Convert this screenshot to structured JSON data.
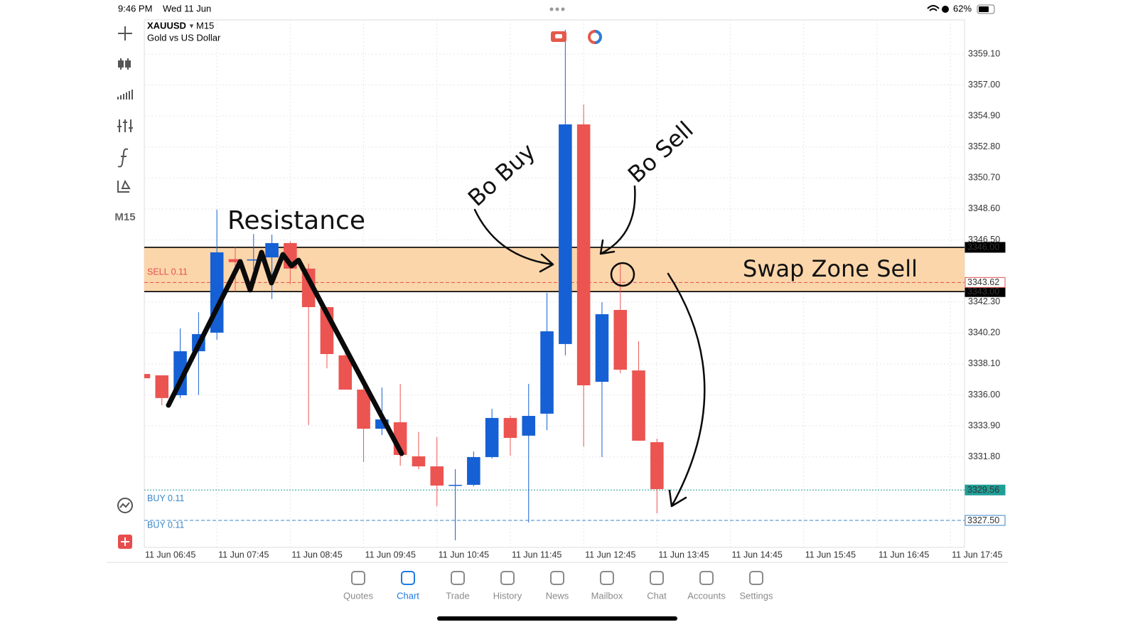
{
  "status_bar": {
    "time": "9:46 PM",
    "date": "Wed 11 Jun",
    "battery": "62%"
  },
  "chart_header": {
    "symbol": "XAUUSD",
    "timeframe": "M15",
    "description": "Gold vs US Dollar"
  },
  "left_toolbar": {
    "timeframe": "M15"
  },
  "chart_data": {
    "type": "candlestick",
    "open": [
      3337.42,
      3337.33,
      3335.98,
      3338.96,
      3340.22,
      3345.2,
      3345.13,
      3345.32,
      3346.29,
      3344.56,
      3341.95,
      3338.68,
      3336.36,
      3333.71,
      3334.15,
      3331.84,
      3331.16,
      3329.86,
      3329.91,
      3331.79,
      3334.44,
      3333.24,
      3334.73,
      3339.45,
      3354.33,
      3336.89,
      3341.76,
      3337.66,
      3332.8
    ],
    "high": [
      3337.5,
      3337.33,
      3340.5,
      3341.6,
      3348.55,
      3346.0,
      3346.9,
      3346.86,
      3346.4,
      3344.9,
      3341.95,
      3339.16,
      3336.75,
      3336.5,
      3336.75,
      3333.5,
      3333.14,
      3330.97,
      3332.17,
      3335.06,
      3334.58,
      3336.75,
      3342.92,
      3360.74,
      3355.68,
      3342.29,
      3344.94,
      3339.64,
      3333.04
    ],
    "low": [
      3337.0,
      3335.3,
      3335.79,
      3336.0,
      3339.74,
      3343.0,
      3344.5,
      3342.5,
      3343.5,
      3333.96,
      3337.8,
      3336.36,
      3331.45,
      3333.28,
      3331.2,
      3330.97,
      3328.46,
      3326.15,
      3329.81,
      3331.69,
      3331.89,
      3327.36,
      3333.62,
      3338.68,
      3332.51,
      3331.79,
      3337.47,
      3332.9,
      3327.98
    ],
    "close": [
      3337.13,
      3335.79,
      3338.96,
      3340.12,
      3345.66,
      3345.0,
      3345.18,
      3346.29,
      3344.56,
      3341.95,
      3338.77,
      3336.36,
      3333.71,
      3334.34,
      3331.93,
      3331.16,
      3329.86,
      3329.91,
      3331.79,
      3334.44,
      3333.09,
      3334.58,
      3340.31,
      3354.33,
      3336.65,
      3341.47,
      3337.71,
      3332.9,
      3329.62
    ],
    "up_color": "#1560d4",
    "down_color": "#ec5451",
    "ylim": [
      3325.67,
      3361.41
    ],
    "yticks": [
      {
        "value": 3359.1,
        "label": "3359.10"
      },
      {
        "value": 3357.0,
        "label": "3357.00"
      },
      {
        "value": 3354.9,
        "label": "3354.90"
      },
      {
        "value": 3352.8,
        "label": "3352.80"
      },
      {
        "value": 3350.7,
        "label": "3350.70"
      },
      {
        "value": 3348.6,
        "label": "3348.60"
      },
      {
        "value": 3346.5,
        "label": "3346.50"
      },
      {
        "value": 3342.3,
        "label": "3342.30"
      },
      {
        "value": 3340.2,
        "label": "3340.20"
      },
      {
        "value": 3338.1,
        "label": "3338.10"
      },
      {
        "value": 3336.0,
        "label": "3336.00"
      },
      {
        "value": 3333.9,
        "label": "3333.90"
      },
      {
        "value": 3331.8,
        "label": "3331.80"
      }
    ],
    "xlim": [
      0.04,
      44.77
    ],
    "xticks": [
      {
        "value": 0,
        "label": "11 Jun 06:45"
      },
      {
        "value": 4,
        "label": "11 Jun 07:45"
      },
      {
        "value": 8,
        "label": "11 Jun 08:45"
      },
      {
        "value": 12,
        "label": "11 Jun 09:45"
      },
      {
        "value": 16,
        "label": "11 Jun 10:45"
      },
      {
        "value": 20,
        "label": "11 Jun 11:45"
      },
      {
        "value": 24,
        "label": "11 Jun 12:45"
      },
      {
        "value": 28,
        "label": "11 Jun 13:45"
      },
      {
        "value": 32,
        "label": "11 Jun 14:45"
      },
      {
        "value": 36,
        "label": "11 Jun 15:45"
      },
      {
        "value": 40,
        "label": "11 Jun 16:45"
      },
      {
        "value": 44,
        "label": "11 Jun 17:45"
      }
    ],
    "grid": true,
    "zone": {
      "from": 3343.0,
      "to": 3346.0,
      "color": "#fbcf9c"
    },
    "levels": [
      {
        "value": 3346.0,
        "label": "3346.00",
        "color": "#000000",
        "style": "solid"
      },
      {
        "value": 3343.0,
        "label": "3343.00",
        "color": "#000000",
        "style": "solid"
      },
      {
        "value": 3343.62,
        "label": "3343.62",
        "color": "#e05050",
        "style": "dashed"
      },
      {
        "value": 3329.56,
        "label": "3329.56",
        "color": "#1f9e96",
        "style": "dotted"
      },
      {
        "value": 3327.5,
        "label": "3327.50",
        "color": "#3a86c8",
        "style": "dashed"
      }
    ],
    "order_labels": [
      {
        "text": "SELL 0.11",
        "value": 3344.3,
        "color": "#e05050"
      },
      {
        "text": "BUY 0.11",
        "value": 3328.97,
        "color": "#3a86c8"
      },
      {
        "text": "BUY 0.11",
        "value": 3327.15,
        "color": "#3a86c8"
      }
    ]
  },
  "annotations": {
    "resistance": "Resistance",
    "bo_buy": "Bo Buy",
    "bo_sell": "Bo Sell",
    "swap_zone": "Swap Zone  Sell"
  },
  "tab_bar": {
    "tabs": [
      "Quotes",
      "Chart",
      "Trade",
      "History",
      "News",
      "Mailbox",
      "Chat",
      "Accounts",
      "Settings"
    ],
    "active": "Chart"
  }
}
